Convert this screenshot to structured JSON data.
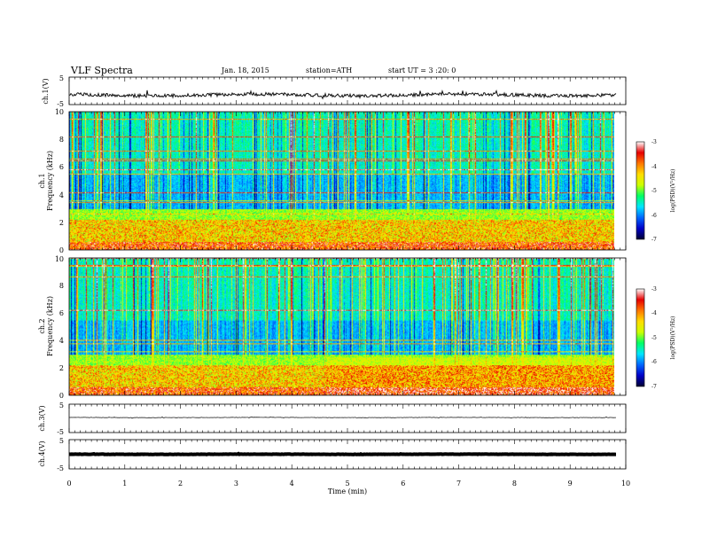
{
  "header": {
    "title": "VLF  Spectra",
    "date": "Jan. 18, 2015",
    "station": "station=ATH",
    "start": "start  UT  =   3  :20: 0"
  },
  "x_axis": {
    "label": "Time  (min)",
    "ticks": [
      "0",
      "1",
      "2",
      "3",
      "4",
      "5",
      "6",
      "7",
      "8",
      "9",
      "10"
    ],
    "range": [
      0,
      10
    ],
    "data_end": 9.83
  },
  "colors": {
    "trace": "#111111",
    "colormap": [
      "#000033",
      "#0000c8",
      "#0066ff",
      "#00e5ff",
      "#00ff66",
      "#ccff00",
      "#ffdd00",
      "#ff7700",
      "#e60000",
      "#ffffff"
    ]
  },
  "chart_data": [
    {
      "id": "ch1-waveform",
      "type": "line",
      "ylabel": "ch.1(V)",
      "ylim": [
        -5,
        5
      ],
      "ytick_labels": [
        "5",
        "-5"
      ],
      "series": [
        {
          "x": [
            0,
            9.83
          ],
          "y": [
            -1.5,
            -1.5
          ]
        }
      ]
    },
    {
      "id": "ch1-spectrogram",
      "type": "heatmap",
      "ylabel_line1": "ch.1",
      "ylabel_line2": "Frequency  (kHz)",
      "ylim": [
        0,
        10
      ],
      "ytick_labels": [
        "0",
        "2",
        "4",
        "6",
        "8",
        "10"
      ],
      "colorbar": {
        "label": "log(PSD)(V²/Hz)",
        "ticks": [
          "-3",
          "-4",
          "-5",
          "-6",
          "-7"
        ],
        "range": [
          -7,
          -3
        ]
      },
      "seed": 11
    },
    {
      "id": "ch2-spectrogram",
      "type": "heatmap",
      "ylabel_line1": "ch.2",
      "ylabel_line2": "Frequency  (kHz)",
      "ylim": [
        0,
        10
      ],
      "ytick_labels": [
        "0",
        "2",
        "4",
        "6",
        "8",
        "10"
      ],
      "colorbar": {
        "label": "log(PSD)(V²/Hz)",
        "ticks": [
          "-3",
          "-4",
          "-5",
          "-6",
          "-7"
        ],
        "range": [
          -7,
          -3
        ]
      },
      "seed": 29
    },
    {
      "id": "ch3-waveform",
      "type": "line",
      "ylabel": "ch.3(V)",
      "ylim": [
        -5,
        5
      ],
      "ytick_labels": [
        "5",
        "-5"
      ],
      "series": [
        {
          "x": [
            0,
            9.83
          ],
          "y": [
            0.3,
            0.3
          ]
        }
      ]
    },
    {
      "id": "ch4-waveform",
      "type": "line",
      "ylabel": "ch.4(V)",
      "ylim": [
        -5,
        5
      ],
      "ytick_labels": [
        "5",
        "-5"
      ],
      "series": [
        {
          "x": [
            0,
            9.83
          ],
          "y": [
            0,
            0
          ]
        }
      ]
    }
  ]
}
